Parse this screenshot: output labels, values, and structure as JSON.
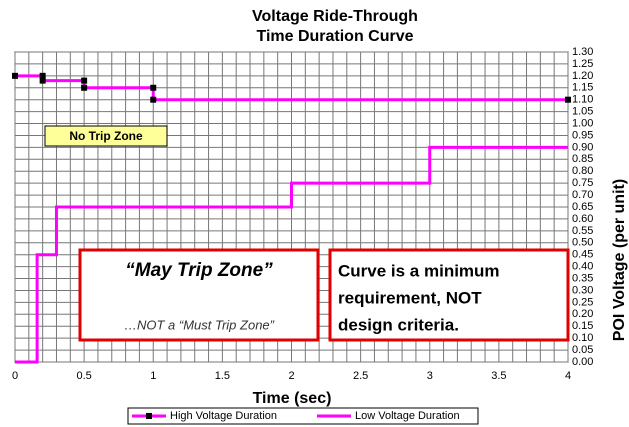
{
  "chart_data": {
    "type": "line",
    "title": [
      "Voltage Ride-Through",
      "Time Duration Curve"
    ],
    "x_label": "Time (sec)",
    "y_label": "POI Voltage (per unit)",
    "xlim": [
      0,
      4
    ],
    "xticks": [
      0,
      0.5,
      1,
      1.5,
      2,
      2.5,
      3,
      3.5,
      4
    ],
    "ylim": [
      0,
      1.3
    ],
    "yticks": [
      {
        "value": 0,
        "label": "0.00"
      },
      0.05,
      {
        "value": 0.1,
        "label": "0.10"
      },
      0.15,
      {
        "value": 0.2,
        "label": "0.20"
      },
      0.25,
      {
        "value": 0.3,
        "label": "0.30"
      },
      0.35,
      {
        "value": 0.4,
        "label": "0.40"
      },
      0.45,
      {
        "value": 0.5,
        "label": "0.50"
      },
      0.55,
      {
        "value": 0.6,
        "label": "0.60"
      },
      0.65,
      {
        "value": 0.7,
        "label": "0.70"
      },
      0.75,
      {
        "value": 0.8,
        "label": "0.80"
      },
      0.85,
      {
        "value": 0.9,
        "label": "0.90"
      },
      0.95,
      {
        "value": 1,
        "label": "1.00"
      },
      1.05,
      {
        "value": 1.1,
        "label": "1.10"
      },
      1.15,
      {
        "value": 1.2,
        "label": "1.20"
      },
      1.25,
      {
        "value": 1.3,
        "label": "1.30"
      }
    ],
    "grid": true,
    "legend": "bottom",
    "series": [
      {
        "name": "High Voltage Duration",
        "color": "#ff00ff",
        "markers": true,
        "x": [
          0,
          0.2,
          0.2,
          0.5,
          0.5,
          1,
          1,
          4
        ],
        "values": [
          1.2,
          1.2,
          1.18,
          1.18,
          1.15,
          1.15,
          1.1,
          1.1
        ]
      },
      {
        "name": "Low Voltage Duration",
        "color": "#ff00ff",
        "markers": false,
        "x": [
          0,
          0.16,
          0.16,
          0.3,
          0.3,
          2,
          2,
          3,
          3,
          4
        ],
        "values": [
          0,
          0,
          0.45,
          0.45,
          0.65,
          0.65,
          0.75,
          0.75,
          0.9,
          0.9
        ]
      }
    ],
    "annotations": {
      "no_trip": "No Trip Zone",
      "may_trip": "“May Trip Zone”",
      "not_must": "…NOT a “Must Trip Zone”",
      "curve_note": [
        "Curve is a minimum",
        "requirement, NOT",
        "design criteria."
      ]
    }
  }
}
